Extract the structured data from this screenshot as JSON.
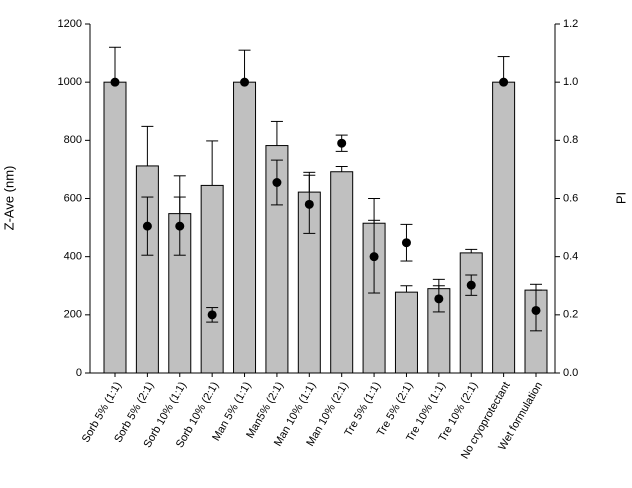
{
  "chart_data": {
    "type": "bar",
    "y_label": "Z-Ave (nm)",
    "y2_label": "PI",
    "categories": [
      "Sorb 5% (1:1)",
      "Sorb 5% (2:1)",
      "Sorb 10% (1:1)",
      "Sorb 10% (2:1)",
      "Man 5% (1:1)",
      "Man5% (2:1)",
      "Man 10% (1:1)",
      "Man 10% (2:1)",
      "Tre 5% (1:1)",
      "Tre 5% (2:1)",
      "Tre 10% (1:1)",
      "Tre 10% (2:1)",
      "No cryoprotectant",
      "Wet formulation"
    ],
    "series": [
      {
        "type": "bar",
        "color": "#c0c0c0",
        "values": [
          1000,
          712,
          548,
          645,
          1000,
          782,
          622,
          692,
          515,
          278,
          290,
          413,
          1000,
          285
        ],
        "errors": [
          120,
          136,
          130,
          153,
          110,
          83,
          68,
          18,
          85,
          22,
          32,
          12,
          88,
          20
        ]
      },
      {
        "type": "scatter",
        "axis": "y2",
        "color": "#000000",
        "values": [
          1.0,
          0.505,
          0.505,
          0.2,
          1.0,
          0.655,
          0.58,
          0.79,
          0.4,
          0.448,
          0.255,
          0.302,
          1.0,
          0.215
        ],
        "errors": [
          0,
          0.1,
          0.1,
          0.025,
          0,
          0.077,
          0.1,
          0.028,
          0.125,
          0.063,
          0.045,
          0.035,
          0,
          0.07
        ]
      }
    ],
    "ylim": [
      0,
      1200
    ],
    "yticks": [
      0,
      200,
      400,
      600,
      800,
      1000,
      1200
    ],
    "y2lim": [
      0,
      1.2
    ],
    "y2ticks": [
      {
        "value": 0,
        "label": "0.0"
      },
      0.2,
      0.4,
      0.6,
      0.8,
      {
        "value": 1,
        "label": "1.0"
      },
      1.2
    ]
  }
}
